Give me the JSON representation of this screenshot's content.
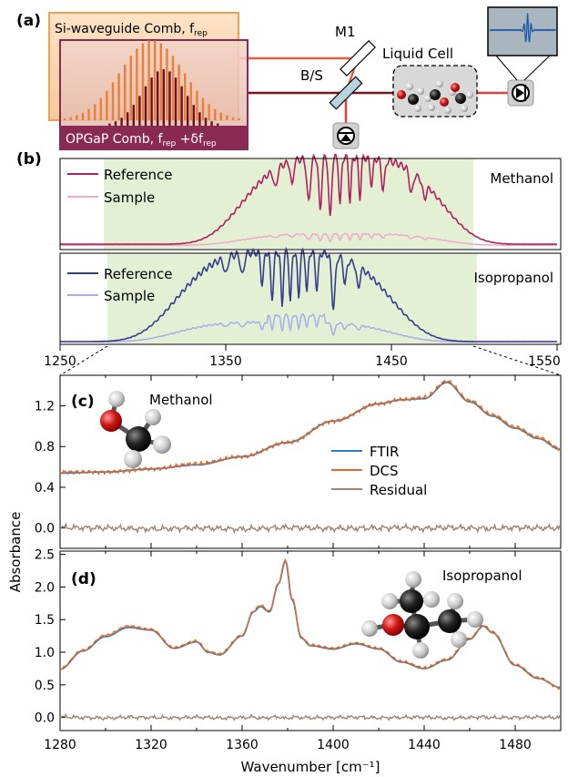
{
  "panel_a": {
    "label": "(a)",
    "si_comb_prefix": "Si-waveguide Comb, f",
    "si_comb_sub": "rep",
    "opgap_prefix": "OPGaP Comb, f",
    "opgap_sub1": "rep",
    "opgap_mid": " +δf",
    "opgap_sub2": "rep",
    "mirror_label": "M1",
    "beamsplitter_label": "B/S",
    "cell_label": "Liquid Cell",
    "colors": {
      "si": "#f0a050",
      "opgap": "#8a2a52",
      "beam_orange": "#e8603a",
      "beam_dark": "#7a1520",
      "beam_red": "#e04040",
      "inset_bg": "#a9b6c0",
      "inset_line": "#1e5aa8"
    }
  },
  "panel_b": {
    "label": "(b)",
    "top": {
      "ref_label": "Reference",
      "sample_label": "Sample",
      "name": "Methanol"
    },
    "bottom": {
      "ref_label": "Reference",
      "sample_label": "Sample",
      "name": "Isopropanol"
    },
    "x_ticks": [
      "1250",
      "1350",
      "1450",
      "1550"
    ],
    "colors": {
      "top_ref": "#b0205a",
      "top_sample": "#f0a8c8",
      "bot_ref": "#353c8c",
      "bot_sample": "#a8acec",
      "shade": "#e4f0d4"
    }
  },
  "chart_data": [
    {
      "type": "line",
      "panel": "(c)",
      "name": "Methanol",
      "ylim": [
        -0.2,
        1.5
      ],
      "y_ticks": [
        "0.0",
        "0.4",
        "0.8",
        "1.2"
      ],
      "x": [
        1280,
        1300,
        1320,
        1340,
        1360,
        1380,
        1400,
        1420,
        1430,
        1440,
        1450,
        1460,
        1470,
        1480,
        1490,
        1500
      ],
      "series": [
        {
          "name": "FTIR",
          "color": "#2a7fc4",
          "values": [
            0.54,
            0.55,
            0.58,
            0.62,
            0.7,
            0.84,
            1.05,
            1.22,
            1.26,
            1.27,
            1.43,
            1.24,
            1.1,
            0.98,
            0.88,
            0.77
          ]
        },
        {
          "name": "DCS",
          "color": "#e06a2c",
          "values": [
            0.55,
            0.55,
            0.58,
            0.63,
            0.7,
            0.84,
            1.05,
            1.22,
            1.26,
            1.28,
            1.44,
            1.25,
            1.11,
            0.99,
            0.89,
            0.78
          ]
        },
        {
          "name": "Residual",
          "color": "#9b8674",
          "values": [
            0.01,
            0.0,
            -0.02,
            0.0,
            -0.02,
            0.01,
            -0.01,
            0.0,
            0.01,
            -0.01,
            0.01,
            0.0,
            -0.01,
            0.01,
            0.0,
            0.0
          ]
        }
      ]
    },
    {
      "type": "line",
      "panel": "(d)",
      "name": "Isopropanol",
      "ylim": [
        -0.2,
        2.55
      ],
      "y_ticks": [
        "0.0",
        "0.5",
        "1.0",
        "1.5",
        "2.0",
        "2.5"
      ],
      "x_ticks": [
        "1280",
        "1320",
        "1360",
        "1400",
        "1440",
        "1480"
      ],
      "xlabel": "Wavenumber [cm⁻¹]",
      "ylabel": "Absorbance",
      "x": [
        1280,
        1290,
        1300,
        1310,
        1320,
        1330,
        1340,
        1345,
        1350,
        1360,
        1365,
        1368,
        1372,
        1376,
        1379,
        1382,
        1386,
        1390,
        1400,
        1410,
        1420,
        1430,
        1440,
        1450,
        1460,
        1466,
        1470,
        1480,
        1490,
        1500
      ],
      "series": [
        {
          "name": "FTIR",
          "color": "#2a7fc4",
          "values": [
            0.74,
            1.02,
            1.24,
            1.38,
            1.34,
            1.06,
            1.16,
            1.0,
            0.96,
            1.25,
            1.62,
            1.7,
            1.62,
            2.05,
            2.4,
            1.8,
            1.22,
            1.1,
            1.05,
            1.13,
            1.05,
            0.85,
            0.75,
            0.88,
            1.2,
            1.4,
            1.3,
            0.8,
            0.6,
            0.46
          ]
        },
        {
          "name": "DCS",
          "color": "#e06a2c",
          "values": [
            0.75,
            1.03,
            1.26,
            1.4,
            1.35,
            1.07,
            1.17,
            1.01,
            0.97,
            1.26,
            1.63,
            1.72,
            1.63,
            2.06,
            2.42,
            1.82,
            1.23,
            1.11,
            1.06,
            1.14,
            1.06,
            0.86,
            0.76,
            0.89,
            1.21,
            1.41,
            1.31,
            0.81,
            0.61,
            0.45
          ]
        },
        {
          "name": "Residual",
          "color": "#9b8674",
          "values": [
            0.02,
            0.0,
            -0.02,
            0.01,
            0.0,
            -0.01,
            0.01,
            0.0,
            -0.02,
            0.0,
            0.01,
            -0.02,
            0.0,
            0.02,
            -0.03,
            0.01,
            0.0,
            -0.01,
            0.0,
            0.01,
            -0.01,
            0.0,
            0.01,
            -0.02,
            0.0,
            0.02,
            -0.01,
            0.0,
            0.01,
            0.0
          ]
        }
      ]
    }
  ]
}
